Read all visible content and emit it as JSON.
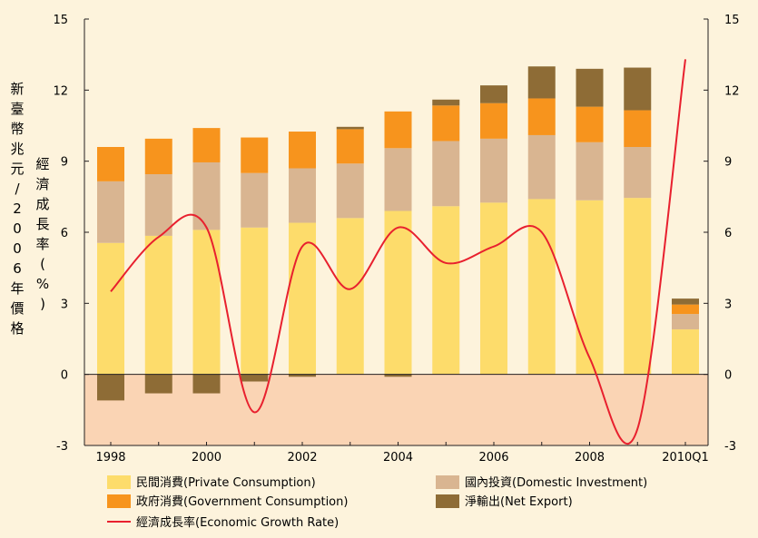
{
  "chart_data": {
    "type": "bar",
    "y_left_label": [
      "新",
      "臺",
      "幣",
      "兆",
      "元",
      "/",
      "2",
      "0",
      "0",
      "6",
      "年",
      "價",
      "格"
    ],
    "y_right_label": [
      "經",
      "濟",
      "成",
      "長",
      "率",
      "(",
      "%",
      ")"
    ],
    "ylim": [
      -3,
      15
    ],
    "yticks": [
      "15",
      "12",
      "9",
      "6",
      "3",
      "0",
      "-3"
    ],
    "yticks_right": [
      "15",
      "12",
      "9",
      "6",
      "3",
      "0",
      "-3"
    ],
    "x_tick_labels": [
      "1998",
      "2000",
      "2002",
      "2004",
      "2006",
      "2008",
      "2010Q1"
    ],
    "categories": [
      "1998",
      "1999",
      "2000",
      "2001",
      "2002",
      "2003",
      "2004",
      "2005",
      "2006",
      "2007",
      "2008",
      "2009",
      "2010Q1"
    ],
    "series": [
      {
        "name": "民間消費(Private Consumption)",
        "color": "#fddc6b",
        "values": [
          5.55,
          5.85,
          6.1,
          6.2,
          6.4,
          6.6,
          6.9,
          7.1,
          7.25,
          7.4,
          7.35,
          7.45,
          1.9
        ]
      },
      {
        "name": "國內投資(Domestic Investment)",
        "color": "#d9b591",
        "values": [
          2.6,
          2.6,
          2.85,
          2.3,
          2.3,
          2.3,
          2.65,
          2.75,
          2.7,
          2.7,
          2.45,
          2.15,
          0.65
        ]
      },
      {
        "name": "政府消費(Government Consumption)",
        "color": "#f7941d",
        "values": [
          1.45,
          1.5,
          1.45,
          1.5,
          1.55,
          1.45,
          1.55,
          1.5,
          1.5,
          1.55,
          1.5,
          1.55,
          0.4
        ]
      },
      {
        "name": "淨輸出(Net Export)",
        "color": "#8e6c36",
        "values": [
          -1.1,
          -0.8,
          -0.8,
          -0.3,
          -0.1,
          0.1,
          -0.1,
          0.25,
          0.75,
          1.35,
          1.6,
          1.8,
          0.25
        ]
      }
    ],
    "growth_line": {
      "name": "經濟成長率(Economic Growth Rate)",
      "color": "#e8202e",
      "values": [
        3.5,
        5.8,
        6.2,
        -1.6,
        5.4,
        3.6,
        6.2,
        4.7,
        5.4,
        6.0,
        0.7,
        -2.3,
        13.3
      ]
    },
    "negative_region_color": "#fad4b4",
    "legend_position": "bottom"
  }
}
